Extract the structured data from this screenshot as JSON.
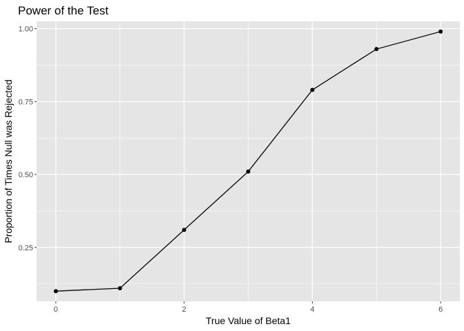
{
  "chart_data": {
    "type": "line",
    "title": "Power of the Test",
    "xlabel": "True Value of Beta1",
    "ylabel": "Proportion of Times Null was Rejected",
    "x": [
      0,
      1,
      2,
      3,
      4,
      5,
      6
    ],
    "series": [
      {
        "values": [
          0.1,
          0.11,
          0.31,
          0.51,
          0.79,
          0.93,
          0.99
        ]
      }
    ],
    "xlim": [
      -0.3,
      6.3
    ],
    "ylim": [
      0.065,
      1.025
    ],
    "x_ticks": [
      0,
      2,
      4,
      6
    ],
    "x_tick_labels": [
      "0",
      "2",
      "4",
      "6"
    ],
    "y_ticks": [
      0.25,
      0.5,
      0.75,
      1.0
    ],
    "y_tick_labels": [
      "0.25",
      "0.50",
      "0.75",
      "1.00"
    ],
    "grid": true,
    "legend": "none",
    "colors": {
      "panel_background": "#e5e5e5",
      "grid_major": "#ffffff",
      "line": "#000000",
      "point": "#000000",
      "tick_text": "#4d4d4d"
    }
  }
}
